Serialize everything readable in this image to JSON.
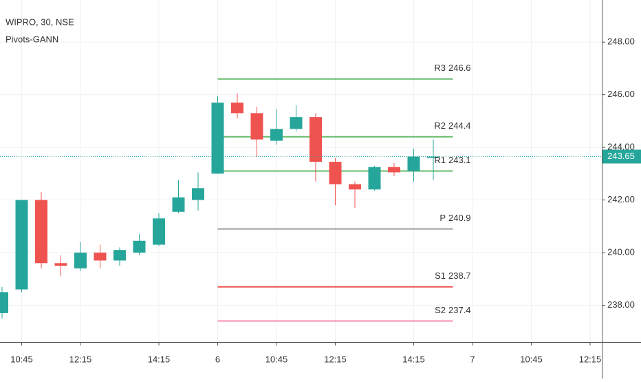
{
  "chart_data": {
    "type": "candlestick",
    "title": "WIPRO, 30, NSE",
    "subtitle": "Pivots-GANN",
    "categories": [
      null,
      "10:45",
      null,
      null,
      "12:15",
      null,
      null,
      null,
      "14:15",
      null,
      null,
      "6",
      null,
      null,
      "10:45",
      null,
      null,
      "12:15",
      null,
      null,
      null,
      "14:15",
      null,
      null,
      "7",
      null,
      null,
      "10:45",
      null,
      null,
      "12:15"
    ],
    "open": [
      237.7,
      238.6,
      242.0,
      239.6,
      239.4,
      240.0,
      239.7,
      240.0,
      240.3,
      241.55,
      242.0,
      243.0,
      245.7,
      245.3,
      244.25,
      244.7,
      245.15,
      243.45,
      242.6,
      242.4,
      243.25,
      243.1,
      243.6,
      null,
      null,
      null,
      null,
      null,
      null,
      null,
      null
    ],
    "high": [
      238.7,
      242.0,
      242.3,
      239.9,
      240.4,
      240.3,
      240.2,
      240.7,
      241.5,
      242.75,
      243.05,
      245.95,
      246.05,
      245.55,
      245.45,
      245.6,
      245.3,
      243.6,
      242.7,
      243.3,
      243.4,
      243.95,
      244.3,
      null,
      null,
      null,
      null,
      null,
      null,
      null,
      null
    ],
    "low": [
      237.5,
      238.5,
      239.4,
      239.1,
      239.3,
      239.4,
      239.5,
      239.9,
      240.25,
      241.5,
      241.6,
      243.0,
      245.1,
      243.65,
      244.1,
      244.6,
      242.7,
      241.8,
      241.7,
      242.35,
      242.9,
      242.7,
      242.75,
      null,
      null,
      null,
      null,
      null,
      null,
      null,
      null
    ],
    "close": [
      238.5,
      242.0,
      239.6,
      239.5,
      240.0,
      239.7,
      240.1,
      240.45,
      241.3,
      242.1,
      242.45,
      245.7,
      245.3,
      244.3,
      244.7,
      245.15,
      243.45,
      242.6,
      242.4,
      243.25,
      243.05,
      243.65,
      243.65,
      null,
      null,
      null,
      null,
      null,
      null,
      null,
      null
    ],
    "up_color": "#26a69a",
    "down_color": "#ef5350",
    "ylim": [
      236.6,
      249.6
    ],
    "yticks": [
      {
        "value": 238,
        "label": "238.00"
      },
      {
        "value": 240,
        "label": "240.00"
      },
      {
        "value": 242,
        "label": "242.00"
      },
      {
        "value": 244,
        "label": "244.00"
      },
      {
        "value": 246,
        "label": "246.00"
      },
      {
        "value": 248,
        "label": "248.00"
      }
    ],
    "grid": true,
    "pivots": [
      {
        "name": "R3",
        "value": 246.6,
        "color": "#66bb6a"
      },
      {
        "name": "R2",
        "value": 244.4,
        "color": "#66bb6a"
      },
      {
        "name": "R1",
        "value": 243.1,
        "color": "#66bb6a"
      },
      {
        "name": "P",
        "value": 240.9,
        "color": "#9e9e9e"
      },
      {
        "name": "S1",
        "value": 238.7,
        "color": "#ef5350"
      },
      {
        "name": "S2",
        "value": 237.4,
        "color": "#f48fb1"
      }
    ],
    "last_price": {
      "value": 243.65,
      "color": "#26a69a"
    }
  }
}
